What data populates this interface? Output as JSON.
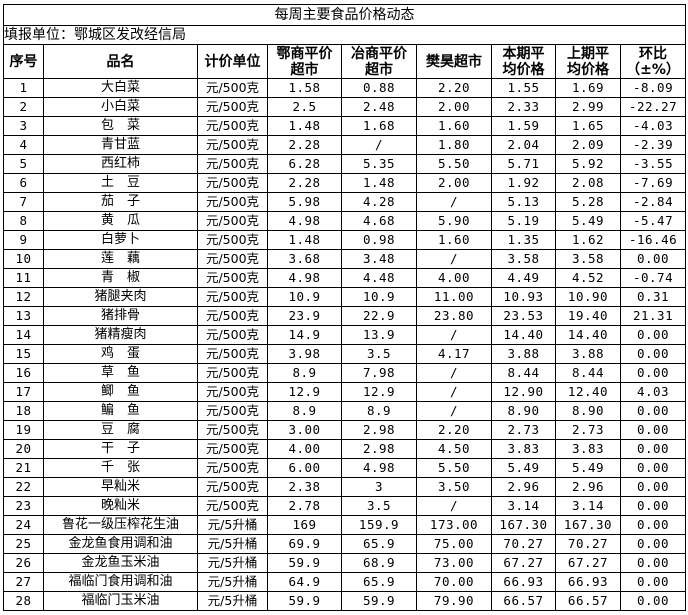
{
  "title": "每周主要食品价格动态",
  "reporter": "填报单位：鄂城区发改经信局",
  "headers": {
    "no": "序号",
    "name": "品名",
    "unit": "计价单位",
    "e_l1": "鄂商平价",
    "e_l2": "超市",
    "y_l1": "冶商平价",
    "y_l2": "超市",
    "fan": "樊昊超市",
    "cur_l1": "本期平",
    "cur_l2": "均价格",
    "prev_l1": "上期平",
    "prev_l2": "均价格",
    "chg_l1": "环比",
    "chg_l2": "（±%）"
  },
  "rows": [
    [
      "1",
      "大白菜",
      "元/500克",
      "1.58",
      "0.88",
      "2.20",
      "1.55",
      "1.69",
      "-8.09"
    ],
    [
      "2",
      "小白菜",
      "元/500克",
      "2.5",
      "2.48",
      "2.00",
      "2.33",
      "2.99",
      "-22.27"
    ],
    [
      "3",
      "包　菜",
      "元/500克",
      "1.48",
      "1.68",
      "1.60",
      "1.59",
      "1.65",
      "-4.03"
    ],
    [
      "4",
      "青甘蓝",
      "元/500克",
      "2.28",
      "/",
      "1.80",
      "2.04",
      "2.09",
      "-2.39"
    ],
    [
      "5",
      "西红柿",
      "元/500克",
      "6.28",
      "5.35",
      "5.50",
      "5.71",
      "5.92",
      "-3.55"
    ],
    [
      "6",
      "土　豆",
      "元/500克",
      "2.28",
      "1.48",
      "2.00",
      "1.92",
      "2.08",
      "-7.69"
    ],
    [
      "7",
      "茄　子",
      "元/500克",
      "5.98",
      "4.28",
      "/",
      "5.13",
      "5.28",
      "-2.84"
    ],
    [
      "8",
      "黄　瓜",
      "元/500克",
      "4.98",
      "4.68",
      "5.90",
      "5.19",
      "5.49",
      "-5.47"
    ],
    [
      "9",
      "白萝卜",
      "元/500克",
      "1.48",
      "0.98",
      "1.60",
      "1.35",
      "1.62",
      "-16.46"
    ],
    [
      "10",
      "莲　藕",
      "元/500克",
      "3.68",
      "3.48",
      "/",
      "3.58",
      "3.58",
      "0.00"
    ],
    [
      "11",
      "青　椒",
      "元/500克",
      "4.98",
      "4.48",
      "4.00",
      "4.49",
      "4.52",
      "-0.74"
    ],
    [
      "12",
      "猪腿夹肉",
      "元/500克",
      "10.9",
      "10.9",
      "11.00",
      "10.93",
      "10.90",
      "0.31"
    ],
    [
      "13",
      "猪排骨",
      "元/500克",
      "23.9",
      "22.9",
      "23.80",
      "23.53",
      "19.40",
      "21.31"
    ],
    [
      "14",
      "猪精瘦肉",
      "元/500克",
      "14.9",
      "13.9",
      "/",
      "14.40",
      "14.40",
      "0.00"
    ],
    [
      "15",
      "鸡　蛋",
      "元/500克",
      "3.98",
      "3.5",
      "4.17",
      "3.88",
      "3.88",
      "0.00"
    ],
    [
      "16",
      "草　鱼",
      "元/500克",
      "8.9",
      "7.98",
      "/",
      "8.44",
      "8.44",
      "0.00"
    ],
    [
      "17",
      "鲫　鱼",
      "元/500克",
      "12.9",
      "12.9",
      "/",
      "12.90",
      "12.40",
      "4.03"
    ],
    [
      "18",
      "鳊　鱼",
      "元/500克",
      "8.9",
      "8.9",
      "/",
      "8.90",
      "8.90",
      "0.00"
    ],
    [
      "19",
      "豆　腐",
      "元/500克",
      "3.00",
      "2.98",
      "2.20",
      "2.73",
      "2.73",
      "0.00"
    ],
    [
      "20",
      "干　子",
      "元/500克",
      "4.00",
      "2.98",
      "4.50",
      "3.83",
      "3.83",
      "0.00"
    ],
    [
      "21",
      "千　张",
      "元/500克",
      "6.00",
      "4.98",
      "5.50",
      "5.49",
      "5.49",
      "0.00"
    ],
    [
      "22",
      "早籼米",
      "元/500克",
      "2.38",
      "3",
      "3.50",
      "2.96",
      "2.96",
      "0.00"
    ],
    [
      "23",
      "晚籼米",
      "元/500克",
      "2.78",
      "3.5",
      "/",
      "3.14",
      "3.14",
      "0.00"
    ],
    [
      "24",
      "鲁花一级压榨花生油",
      "元/5升桶",
      "169",
      "159.9",
      "173.00",
      "167.30",
      "167.30",
      "0.00"
    ],
    [
      "25",
      "金龙鱼食用调和油",
      "元/5升桶",
      "69.9",
      "65.9",
      "75.00",
      "70.27",
      "70.27",
      "0.00"
    ],
    [
      "26",
      "金龙鱼玉米油",
      "元/5升桶",
      "59.9",
      "68.9",
      "73.00",
      "67.27",
      "67.27",
      "0.00"
    ],
    [
      "27",
      "福临门食用调和油",
      "元/5升桶",
      "64.9",
      "65.9",
      "70.00",
      "66.93",
      "66.93",
      "0.00"
    ],
    [
      "28",
      "福临门玉米油",
      "元/5升桶",
      "59.9",
      "59.9",
      "79.90",
      "66.57",
      "66.57",
      "0.00"
    ]
  ]
}
